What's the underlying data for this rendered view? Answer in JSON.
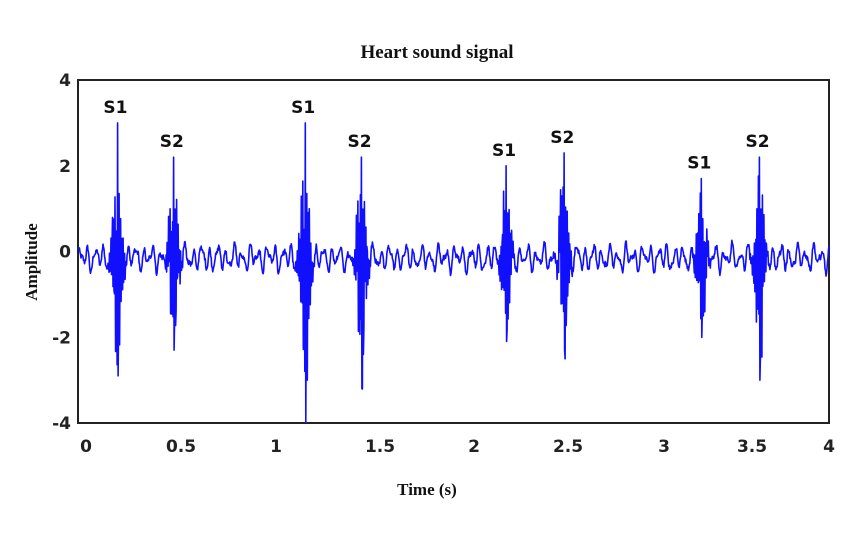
{
  "chart_data": {
    "type": "line",
    "title": "Heart sound signal",
    "xlabel": "Time (s)",
    "ylabel": "Amplitude",
    "xlim": [
      0,
      4
    ],
    "ylim": [
      -4,
      4
    ],
    "grid": false,
    "legend": null,
    "line_color": "#1010ff",
    "x_ticks": [
      {
        "label": "0",
        "value": 0
      },
      {
        "label": "0.5",
        "value": 0.5
      },
      {
        "label": "1",
        "value": 1
      },
      {
        "label": "1.5",
        "value": 1.5
      },
      {
        "label": "2",
        "value": 2
      },
      {
        "label": "2.5",
        "value": 2.5
      },
      {
        "label": "3",
        "value": 3
      },
      {
        "label": "3.5",
        "value": 3.5
      },
      {
        "label": "4",
        "value": 4
      }
    ],
    "y_ticks": [
      {
        "label": "4",
        "value": 4
      },
      {
        "label": "2",
        "value": 2
      },
      {
        "label": "0",
        "value": 0
      },
      {
        "label": "-2",
        "value": -2
      },
      {
        "label": "-4",
        "value": -4
      }
    ],
    "baseline_noise_amplitude": 0.35,
    "events": [
      {
        "label": "S1",
        "t": 0.21,
        "peak": 3.0,
        "trough": -2.9
      },
      {
        "label": "S2",
        "t": 0.51,
        "peak": 2.2,
        "trough": -2.3
      },
      {
        "label": "S1",
        "t": 1.21,
        "peak": 3.0,
        "trough": -4.0
      },
      {
        "label": "S2",
        "t": 1.51,
        "peak": 2.2,
        "trough": -3.2
      },
      {
        "label": "S1",
        "t": 2.28,
        "peak": 2.0,
        "trough": -2.1
      },
      {
        "label": "S2",
        "t": 2.59,
        "peak": 2.3,
        "trough": -2.3
      },
      {
        "label": "S1",
        "t": 3.32,
        "peak": 1.7,
        "trough": -2.0
      },
      {
        "label": "S2",
        "t": 3.63,
        "peak": 2.2,
        "trough": -3.0
      }
    ]
  }
}
